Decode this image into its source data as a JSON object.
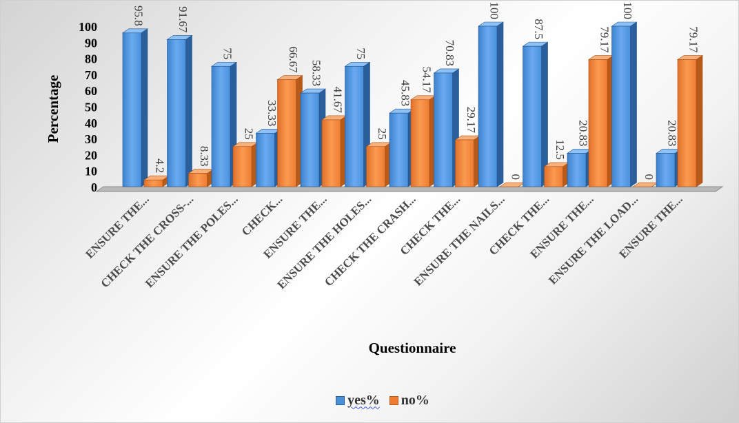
{
  "chart_data": {
    "type": "bar",
    "title": "",
    "xlabel": "Questionnaire",
    "ylabel": "Percentage",
    "ylim": [
      0,
      100
    ],
    "yticks": [
      "0",
      "10",
      "20",
      "30",
      "40",
      "50",
      "60",
      "70",
      "80",
      "90",
      "100"
    ],
    "categories": [
      "ENSURE THE...",
      "CHECK THE CROSS-...",
      "ENSURE THE POLES...",
      "CHECK...",
      "ENSURE THE...",
      "ENSURE THE HOLES...",
      "CHECK THE CRASH...",
      "CHECK THE...",
      "ENSURE THE NAILS...",
      "CHECK THE...",
      "ENSURE THE...",
      "ENSURE THE LOAD...",
      "ENSURE THE..."
    ],
    "series": [
      {
        "name": "yes%",
        "color": "#4a90d9",
        "values": [
          95.8,
          91.67,
          75,
          33.33,
          58.33,
          75,
          45.83,
          70.83,
          100,
          87.5,
          20.83,
          100,
          20.83
        ],
        "labels": [
          "95.8",
          "91.67",
          "75",
          "33.33",
          "58.33",
          "75",
          "45.83",
          "70.83",
          "100",
          "87.5",
          "20.83",
          "100",
          "20.83"
        ]
      },
      {
        "name": "no%",
        "color": "#ee7d31",
        "values": [
          4.2,
          8.33,
          25,
          66.67,
          41.67,
          25,
          54.17,
          29.17,
          0,
          12.5,
          79.17,
          0,
          79.17
        ],
        "labels": [
          "4.2",
          "8.33",
          "25",
          "66.67",
          "41.67",
          "25",
          "54.17",
          "29.17",
          "0",
          "12.5",
          "79.17",
          "0",
          "79.17"
        ]
      }
    ],
    "grid": false,
    "legend_position": "bottom",
    "style": "3d-clustered-column"
  }
}
